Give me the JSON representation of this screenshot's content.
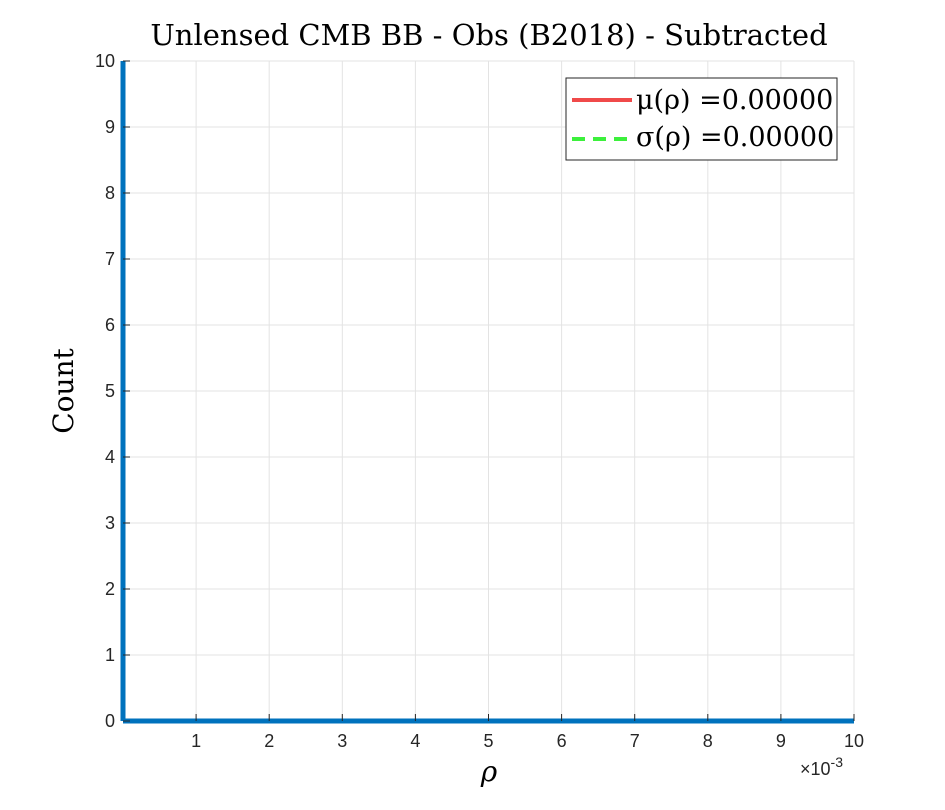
{
  "chart_data": {
    "type": "histogram",
    "title": "Unlensed CMB BB - Obs (B2018) - Subtracted",
    "xlabel": "ρ",
    "ylabel": "Count",
    "x_multiplier_label": "×10",
    "x_multiplier_exponent": "-3",
    "xlim": [
      0,
      10
    ],
    "ylim": [
      0,
      10
    ],
    "x_ticks": [
      1,
      2,
      3,
      4,
      5,
      6,
      7,
      8,
      9,
      10
    ],
    "y_ticks": [
      0,
      1,
      2,
      3,
      4,
      5,
      6,
      7,
      8,
      9,
      10
    ],
    "grid": true,
    "series": [
      {
        "name": "histogram",
        "x": [
          0,
          10
        ],
        "y": [
          0,
          0
        ],
        "color": "#0072BD"
      }
    ],
    "legend": {
      "position": "top-right",
      "entries": [
        {
          "label": "μ(ρ) =0.00000",
          "color": "#F04A4A",
          "style": "solid"
        },
        {
          "label": "σ(ρ) =0.00000",
          "color": "#3CF03C",
          "style": "dashed"
        }
      ]
    }
  }
}
